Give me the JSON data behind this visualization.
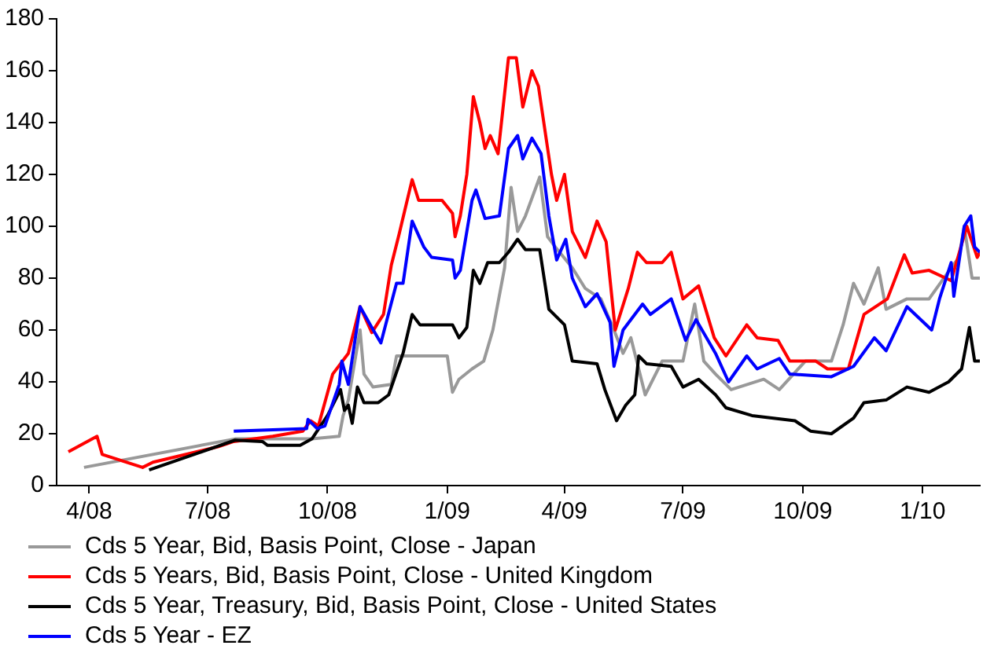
{
  "chart_data": {
    "type": "line",
    "xlim": [
      "2008-03-07",
      "2010-02-14"
    ],
    "xticks": [
      {
        "value": "2008-04-01",
        "label": "4/08"
      },
      {
        "value": "2008-07-01",
        "label": "7/08"
      },
      {
        "value": "2008-10-01",
        "label": "10/08"
      },
      {
        "value": "2009-01-01",
        "label": "1/09"
      },
      {
        "value": "2009-04-01",
        "label": "4/09"
      },
      {
        "value": "2009-07-01",
        "label": "7/09"
      },
      {
        "value": "2009-10-01",
        "label": "10/09"
      },
      {
        "value": "2010-01-01",
        "label": "1/10"
      }
    ],
    "ylim": [
      0,
      180
    ],
    "yticks": [
      0,
      20,
      40,
      60,
      80,
      100,
      120,
      140,
      160,
      180
    ],
    "grid": false,
    "legend": "bottom",
    "marker": "none",
    "line_style": "solid",
    "series": [
      {
        "name": "Cds 5 Year, Bid, Basis Point, Close - Japan",
        "color": "#999999",
        "x": [
          "2008-03-28",
          "2008-07-22",
          "2008-09-19",
          "2008-10-10",
          "2008-10-13",
          "2008-10-17",
          "2008-10-26",
          "2008-10-29",
          "2008-11-05",
          "2008-11-19",
          "2008-11-23",
          "2009-01-01",
          "2009-01-05",
          "2009-01-10",
          "2009-01-20",
          "2009-01-29",
          "2009-02-05",
          "2009-02-14",
          "2009-02-19",
          "2009-02-24",
          "2009-03-02",
          "2009-03-13",
          "2009-03-19",
          "2009-03-25",
          "2009-04-07",
          "2009-04-17",
          "2009-04-29",
          "2009-05-09",
          "2009-05-16",
          "2009-05-22",
          "2009-06-02",
          "2009-06-15",
          "2009-07-01",
          "2009-07-10",
          "2009-07-17",
          "2009-07-26",
          "2009-08-07",
          "2009-09-01",
          "2009-09-13",
          "2009-10-03",
          "2009-10-23",
          "2009-11-01",
          "2009-11-09",
          "2009-11-17",
          "2009-11-28",
          "2009-12-04",
          "2009-12-20",
          "2010-01-06",
          "2010-01-23",
          "2010-01-29",
          "2010-02-02",
          "2010-02-08",
          "2010-02-14"
        ],
        "values": [
          7,
          18,
          18,
          19,
          27,
          33,
          60,
          43,
          38,
          39,
          50,
          50,
          36,
          41,
          45,
          48,
          60,
          84,
          115,
          98,
          104,
          119,
          96,
          92,
          84,
          76,
          72,
          60,
          51,
          57,
          35,
          48,
          48,
          70,
          48,
          43,
          37,
          41,
          37,
          48,
          48,
          62,
          78,
          70,
          84,
          68,
          72,
          72,
          84,
          88,
          100,
          80,
          80
        ]
      },
      {
        "name": "Cds 5 Years, Bid, Basis Point, Close - United Kingdom",
        "color": "#ff0000",
        "x": [
          "2008-03-16",
          "2008-04-07",
          "2008-04-11",
          "2008-05-12",
          "2008-05-20",
          "2008-07-09",
          "2008-07-21",
          "2008-08-20",
          "2008-09-12",
          "2008-09-18",
          "2008-09-24",
          "2008-10-05",
          "2008-10-17",
          "2008-10-26",
          "2008-11-04",
          "2008-11-13",
          "2008-11-19",
          "2008-11-25",
          "2008-12-05",
          "2008-12-10",
          "2008-12-28",
          "2009-01-05",
          "2009-01-07",
          "2009-01-11",
          "2009-01-16",
          "2009-01-21",
          "2009-01-26",
          "2009-01-30",
          "2009-02-03",
          "2009-02-09",
          "2009-02-17",
          "2009-02-23",
          "2009-02-28",
          "2009-03-07",
          "2009-03-12",
          "2009-03-22",
          "2009-03-26",
          "2009-04-01",
          "2009-04-07",
          "2009-04-17",
          "2009-04-26",
          "2009-05-03",
          "2009-05-10",
          "2009-05-20",
          "2009-05-27",
          "2009-06-03",
          "2009-06-15",
          "2009-06-22",
          "2009-07-01",
          "2009-07-13",
          "2009-07-25",
          "2009-08-03",
          "2009-08-19",
          "2009-08-27",
          "2009-09-12",
          "2009-09-21",
          "2009-10-11",
          "2009-10-20",
          "2009-11-05",
          "2009-11-17",
          "2009-12-05",
          "2009-12-18",
          "2009-12-24",
          "2010-01-06",
          "2010-01-23",
          "2010-02-04",
          "2010-02-12",
          "2010-02-14"
        ],
        "values": [
          13,
          19,
          12,
          7,
          9,
          15,
          17,
          19,
          21,
          25,
          23,
          43,
          51,
          69,
          59,
          66,
          85,
          97,
          118,
          110,
          110,
          105,
          96,
          104,
          120,
          150,
          140,
          130,
          135,
          128,
          165,
          165,
          146,
          160,
          154,
          120,
          110,
          120,
          98,
          88,
          102,
          94,
          60,
          76,
          90,
          86,
          86,
          90,
          72,
          77,
          57,
          50,
          62,
          57,
          56,
          48,
          48,
          45,
          45,
          66,
          72,
          89,
          82,
          83,
          79,
          100,
          88,
          90
        ]
      },
      {
        "name": "Cds 5 Year, Treasury, Bid, Basis Point, Close - United States",
        "color": "#000000",
        "x": [
          "2008-05-17",
          "2008-07-22",
          "2008-08-12",
          "2008-08-16",
          "2008-09-10",
          "2008-09-19",
          "2008-10-01",
          "2008-10-11",
          "2008-10-14",
          "2008-10-17",
          "2008-10-20",
          "2008-10-24",
          "2008-10-29",
          "2008-11-09",
          "2008-11-17",
          "2008-11-28",
          "2008-12-05",
          "2008-12-11",
          "2009-01-05",
          "2009-01-10",
          "2009-01-16",
          "2009-01-21",
          "2009-01-26",
          "2009-02-01",
          "2009-02-10",
          "2009-02-17",
          "2009-02-24",
          "2009-03-02",
          "2009-03-13",
          "2009-03-20",
          "2009-04-01",
          "2009-04-07",
          "2009-04-26",
          "2009-05-02",
          "2009-05-11",
          "2009-05-18",
          "2009-05-25",
          "2009-05-28",
          "2009-06-03",
          "2009-06-22",
          "2009-07-01",
          "2009-07-13",
          "2009-07-26",
          "2009-08-03",
          "2009-08-23",
          "2009-09-25",
          "2009-10-07",
          "2009-10-23",
          "2009-11-09",
          "2009-11-17",
          "2009-12-04",
          "2009-12-20",
          "2010-01-06",
          "2010-01-21",
          "2010-01-31",
          "2010-02-06",
          "2010-02-10",
          "2010-02-14"
        ],
        "values": [
          6,
          17.5,
          17,
          15.5,
          15.5,
          18,
          27,
          37,
          29,
          31,
          24,
          38,
          32,
          32,
          35,
          51,
          66,
          62,
          62,
          57,
          61,
          83,
          78,
          86,
          86,
          90,
          95,
          91,
          91,
          68,
          62,
          48,
          47,
          37,
          25,
          31,
          35,
          50,
          47,
          46,
          38,
          41,
          35,
          30,
          27,
          25,
          21,
          20,
          26,
          32,
          33,
          38,
          36,
          40,
          45,
          61,
          48,
          48
        ]
      },
      {
        "name": "Cds 5 Year - EZ",
        "color": "#0000ff",
        "x": [
          "2008-07-21",
          "2008-09-15",
          "2008-09-16",
          "2008-09-23",
          "2008-09-29",
          "2008-10-10",
          "2008-10-12",
          "2008-10-17",
          "2008-10-26",
          "2008-11-04",
          "2008-11-11",
          "2008-11-23",
          "2008-11-28",
          "2008-12-05",
          "2008-12-14",
          "2008-12-20",
          "2009-01-05",
          "2009-01-07",
          "2009-01-11",
          "2009-01-20",
          "2009-01-23",
          "2009-01-30",
          "2009-02-10",
          "2009-02-17",
          "2009-02-24",
          "2009-02-28",
          "2009-03-07",
          "2009-03-14",
          "2009-03-20",
          "2009-03-26",
          "2009-04-02",
          "2009-04-07",
          "2009-04-17",
          "2009-04-26",
          "2009-05-06",
          "2009-05-09",
          "2009-05-16",
          "2009-05-31",
          "2009-06-06",
          "2009-06-22",
          "2009-07-03",
          "2009-07-11",
          "2009-07-26",
          "2009-08-05",
          "2009-08-19",
          "2009-08-27",
          "2009-09-13",
          "2009-09-21",
          "2009-10-23",
          "2009-11-09",
          "2009-11-25",
          "2009-12-04",
          "2009-12-20",
          "2010-01-08",
          "2010-01-14",
          "2010-01-23",
          "2010-01-25",
          "2010-02-02",
          "2010-02-07",
          "2010-02-10",
          "2010-02-14"
        ],
        "values": [
          21,
          22,
          25.5,
          22,
          23,
          39,
          48,
          39,
          69,
          61,
          55,
          78,
          78,
          102,
          92,
          88,
          87,
          80,
          83,
          110,
          114,
          103,
          104,
          130,
          135,
          126,
          134,
          128,
          104,
          87,
          95,
          80,
          69,
          74,
          63,
          46,
          60,
          70,
          66,
          72,
          56,
          64,
          51,
          40,
          50,
          45,
          49,
          43,
          42,
          46,
          57,
          52,
          69,
          60,
          72,
          86,
          73,
          100,
          104,
          92,
          90
        ]
      }
    ]
  }
}
